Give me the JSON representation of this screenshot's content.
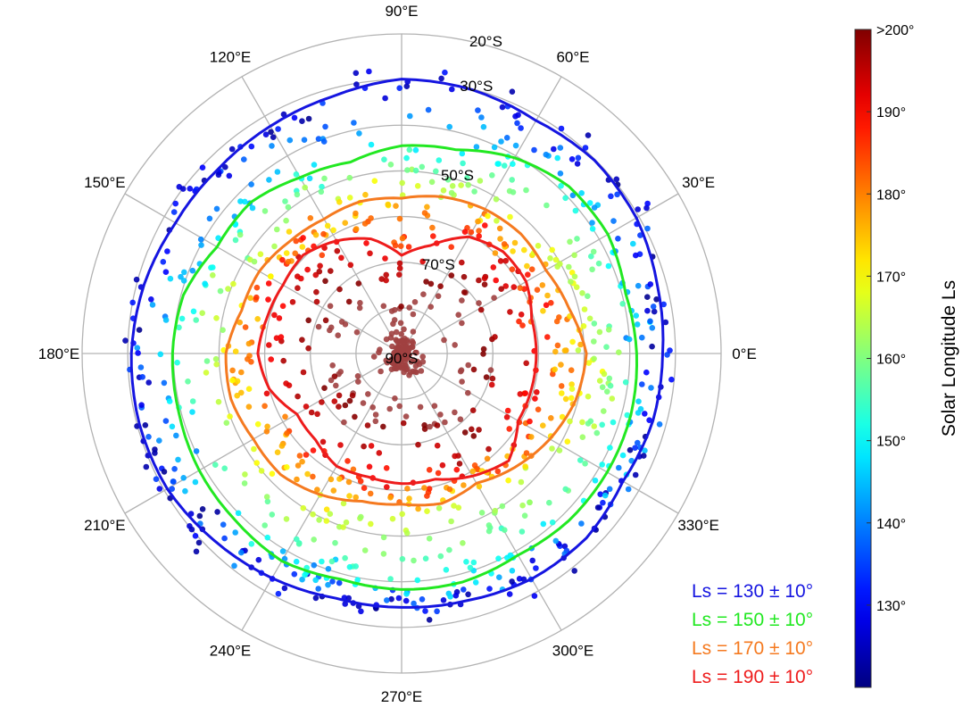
{
  "chart_data": {
    "type": "scatter",
    "projection": "polar-stereographic-south",
    "lon_ticks": [
      {
        "lon": 0,
        "label": "0°E"
      },
      {
        "lon": 30,
        "label": "30°E"
      },
      {
        "lon": 60,
        "label": "60°E"
      },
      {
        "lon": 90,
        "label": "90°E"
      },
      {
        "lon": 120,
        "label": "120°E"
      },
      {
        "lon": 150,
        "label": "150°E"
      },
      {
        "lon": 180,
        "label": "180°E"
      },
      {
        "lon": 210,
        "label": "210°E"
      },
      {
        "lon": 240,
        "label": "240°E"
      },
      {
        "lon": 270,
        "label": "270°E"
      },
      {
        "lon": 300,
        "label": "300°E"
      },
      {
        "lon": 330,
        "label": "330°E"
      }
    ],
    "lat_rings": [
      -90,
      -80,
      -70,
      -60,
      -50,
      -40,
      -30,
      -20
    ],
    "lat_labels": [
      {
        "lat": -20,
        "label": "20°S"
      },
      {
        "lat": -30,
        "label": "30°S"
      },
      {
        "lat": -50,
        "label": "50°S"
      },
      {
        "lat": -70,
        "label": "70°S"
      },
      {
        "lat": -90,
        "label": "90°S"
      }
    ],
    "lat_limit": [
      -90,
      -20
    ],
    "colorbar": {
      "label": "Solar Longitude Ls",
      "range": [
        120,
        200
      ],
      "ticks": [
        {
          "value": 130,
          "label": "130°"
        },
        {
          "value": 140,
          "label": "140°"
        },
        {
          "value": 150,
          "label": "150°"
        },
        {
          "value": 160,
          "label": "160°"
        },
        {
          "value": 170,
          "label": "170°"
        },
        {
          "value": 180,
          "label": "180°"
        },
        {
          "value": 190,
          "label": "190°"
        },
        {
          "value": 200,
          "label": ">200°"
        }
      ],
      "colormap": "jet"
    },
    "series": [
      {
        "name": "Ls = 130 ± 10°",
        "color": "#1515e0",
        "lon": [
          0,
          15,
          30,
          45,
          60,
          75,
          90,
          105,
          120,
          135,
          150,
          165,
          180,
          195,
          210,
          225,
          240,
          255,
          270,
          285,
          300,
          315,
          330,
          345
        ],
        "lat": [
          -32.8,
          -32.0,
          -30.6,
          -30.2,
          -31.1,
          -30.2,
          -29.9,
          -31.7,
          -32.5,
          -33.0,
          -32.8,
          -31.6,
          -30.8,
          -30.5,
          -30.7,
          -32.0,
          -33.2,
          -34.5,
          -34.4,
          -34.0,
          -33.0,
          -32.8,
          -34.0,
          -33.0
        ]
      },
      {
        "name": "Ls = 150 ± 10°",
        "color": "#22e822",
        "lon": [
          0,
          15,
          30,
          45,
          60,
          75,
          90,
          105,
          120,
          135,
          150,
          165,
          180,
          195,
          210,
          225,
          240,
          255,
          270,
          285,
          300,
          315,
          330,
          345
        ],
        "lat": [
          -38.5,
          -39.2,
          -37.8,
          -38.2,
          -40.5,
          -43.8,
          -44.5,
          -46.6,
          -45.5,
          -43.2,
          -43.3,
          -40.5,
          -39.8,
          -39.5,
          -38.8,
          -38.4,
          -37.5,
          -38.8,
          -38.3,
          -38.2,
          -39.0,
          -38.2,
          -38.0,
          -38.0
        ]
      },
      {
        "name": "Ls = 170 ± 10°",
        "color": "#f57a20",
        "lon": [
          0,
          15,
          30,
          45,
          60,
          75,
          90,
          105,
          120,
          135,
          150,
          165,
          180,
          195,
          210,
          225,
          240,
          255,
          270,
          285,
          300,
          315,
          330,
          345
        ],
        "lat": [
          -49.5,
          -52.0,
          -53.5,
          -53.0,
          -53.5,
          -54.5,
          -56.0,
          -55.5,
          -56.0,
          -55.3,
          -54.0,
          -53.7,
          -51.5,
          -51.3,
          -52.5,
          -52.5,
          -54.3,
          -56.5,
          -57.0,
          -56.0,
          -57.2,
          -54.8,
          -52.5,
          -50.5
        ]
      },
      {
        "name": "Ls = 190 ± 10°",
        "color": "#ee1c1c",
        "lon": [
          0,
          15,
          30,
          45,
          60,
          75,
          90,
          105,
          120,
          135,
          150,
          165,
          180,
          195,
          210,
          225,
          240,
          255,
          270,
          285,
          300,
          315,
          330,
          345
        ],
        "lat": [
          -60.5,
          -60.5,
          -58.5,
          -58.5,
          -60.5,
          -65.5,
          -68.5,
          -64.0,
          -61.5,
          -59.5,
          -60.0,
          -59.5,
          -58.5,
          -60.0,
          -63.5,
          -63.3,
          -61.5,
          -62.0,
          -61.5,
          -61.5,
          -59.0,
          -56.8,
          -60.5,
          -60.5
        ]
      }
    ],
    "legend_position": "bottom-right",
    "grid": true
  }
}
